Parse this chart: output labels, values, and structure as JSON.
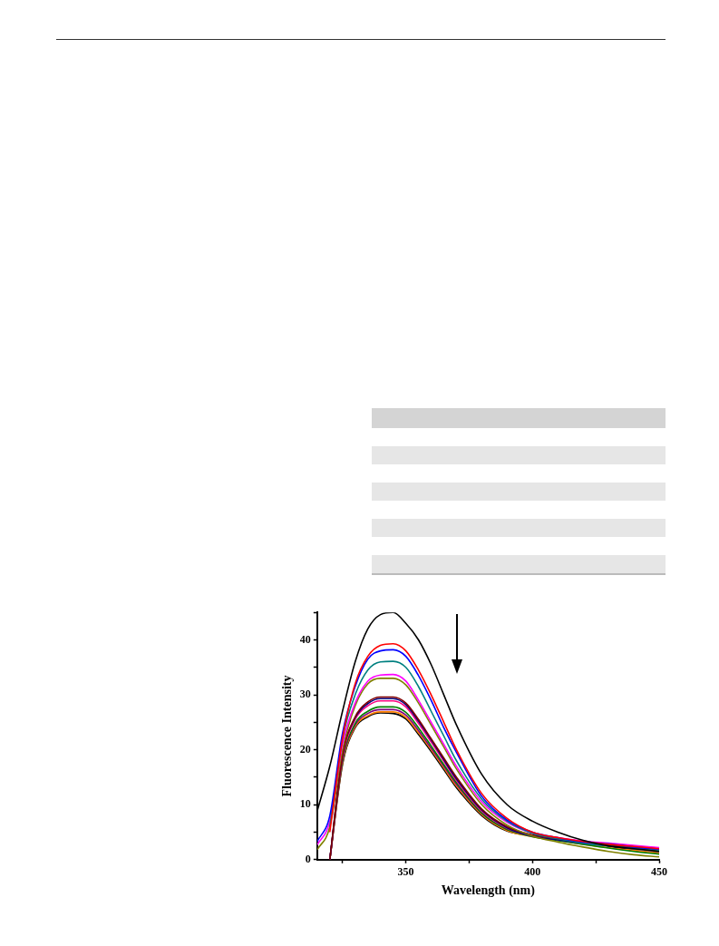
{
  "chart_data": {
    "type": "line",
    "xlabel": "Wavelength (nm)",
    "ylabel": "Fluorescence Intensity",
    "x": [
      315,
      320,
      325,
      330,
      335,
      340,
      345,
      350,
      355,
      360,
      365,
      370,
      380,
      390,
      400,
      410,
      420,
      430,
      440,
      450
    ],
    "xlim": [
      315,
      450
    ],
    "xticks": [
      {
        "value": 325,
        "label": null
      },
      350,
      {
        "value": 375,
        "label": null
      },
      400,
      {
        "value": 425,
        "label": null
      },
      450
    ],
    "ylim": [
      0,
      45
    ],
    "yticks": [
      0,
      {
        "value": 5,
        "label": null
      },
      10,
      {
        "value": 15,
        "label": null
      },
      20,
      {
        "value": 25,
        "label": null
      },
      30,
      {
        "value": 35,
        "label": null
      },
      40,
      {
        "value": 45,
        "label": null
      }
    ],
    "series": [
      {
        "color": "#000000",
        "values": [
          8.8,
          17,
          27,
          36,
          42,
          44.6,
          45,
          43,
          40,
          35.5,
          30,
          24.5,
          15.5,
          10,
          7,
          5,
          3.5,
          2.5,
          2,
          1.5
        ]
      },
      {
        "color": "#ff0000",
        "values": [
          null,
          5,
          22,
          32,
          37,
          39,
          39.3,
          38,
          34.5,
          30,
          25,
          20,
          12,
          7.5,
          5,
          4,
          3.3,
          2.8,
          2.4,
          2
        ]
      },
      {
        "color": "#0000ff",
        "values": [
          3.3,
          8,
          23,
          31.5,
          36.5,
          38,
          38.2,
          37,
          33.5,
          29,
          24,
          19.5,
          11.5,
          7.2,
          5,
          4,
          3.2,
          2.9,
          2.3,
          1.9
        ]
      },
      {
        "color": "#008080",
        "values": [
          null,
          6,
          22,
          30,
          34.5,
          36,
          36.1,
          35,
          31.5,
          27,
          22.5,
          18,
          11,
          7,
          4.8,
          3.8,
          3,
          2.5,
          2.1,
          1.7
        ]
      },
      {
        "color": "#ff00ff",
        "values": [
          2.7,
          7,
          21,
          28.5,
          32.5,
          33.6,
          33.7,
          32.5,
          29,
          25,
          21,
          17,
          10.5,
          6.8,
          4.8,
          4,
          3.4,
          3,
          2.6,
          2.2
        ]
      },
      {
        "color": "#808000",
        "values": [
          1.8,
          6,
          20,
          28,
          32,
          33,
          33,
          31.8,
          28.5,
          24.5,
          20.5,
          16.5,
          10,
          6.3,
          4.3,
          3.2,
          2.3,
          1.5,
          0.9,
          0.5
        ]
      },
      {
        "color": "#800000",
        "values": [
          null,
          0,
          19,
          26,
          28.7,
          29.6,
          29.6,
          28.5,
          25.5,
          22,
          18.5,
          15,
          9.2,
          6,
          4.5,
          3.8,
          3.2,
          2.6,
          2.1,
          1.6
        ]
      },
      {
        "color": "#000080",
        "values": [
          null,
          0,
          19,
          25.8,
          28.4,
          29.3,
          29.3,
          28.2,
          25.2,
          21.8,
          18.2,
          14.7,
          9,
          5.8,
          4.3,
          3.6,
          3,
          2.5,
          2,
          1.5
        ]
      },
      {
        "color": "#ff0080",
        "values": [
          null,
          0,
          18.5,
          25.5,
          28,
          28.9,
          28.9,
          27.8,
          24.8,
          21.4,
          17.9,
          14.4,
          8.8,
          5.7,
          4.3,
          3.7,
          3.1,
          2.6,
          2.1,
          1.7
        ]
      },
      {
        "color": "#008000",
        "values": [
          null,
          0,
          18,
          24.8,
          27,
          27.8,
          27.8,
          26.8,
          24,
          20.7,
          17.3,
          14,
          8.5,
          5.5,
          4.2,
          3.5,
          2.8,
          2.1,
          1.5,
          1
        ]
      },
      {
        "color": "#800080",
        "values": [
          null,
          0,
          17.8,
          24.5,
          26.6,
          27.3,
          27.3,
          26.3,
          23.5,
          20.3,
          17,
          13.7,
          8.4,
          5.5,
          4.4,
          3.8,
          3.2,
          2.8,
          2.4,
          2.1
        ]
      },
      {
        "color": "#ff8000",
        "values": [
          null,
          0,
          17.5,
          24.2,
          26.2,
          26.9,
          26.9,
          25.9,
          23.1,
          20,
          16.7,
          13.4,
          8.2,
          5.3,
          4.2,
          3.5,
          2.8,
          2.2,
          1.7,
          1.2
        ]
      },
      {
        "color": "#000000",
        "values": [
          null,
          0,
          17.3,
          24,
          26,
          26.7,
          26.6,
          25.6,
          22.8,
          19.7,
          16.4,
          13.1,
          8,
          5.2,
          4.4,
          3.9,
          3.3,
          2.5,
          1.7,
          1.2
        ]
      }
    ]
  }
}
